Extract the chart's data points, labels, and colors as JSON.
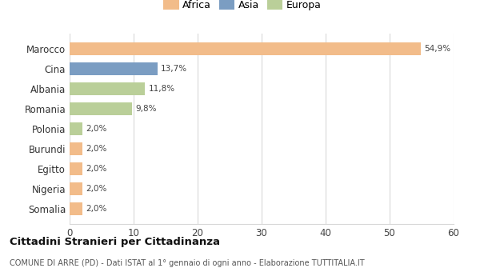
{
  "categories": [
    "Marocco",
    "Cina",
    "Albania",
    "Romania",
    "Polonia",
    "Burundi",
    "Egitto",
    "Nigeria",
    "Somalia"
  ],
  "values": [
    54.9,
    13.7,
    11.8,
    9.8,
    2.0,
    2.0,
    2.0,
    2.0,
    2.0
  ],
  "labels": [
    "54,9%",
    "13,7%",
    "11,8%",
    "9,8%",
    "2,0%",
    "2,0%",
    "2,0%",
    "2,0%",
    "2,0%"
  ],
  "colors": [
    "#F2BC8A",
    "#7B9DC2",
    "#BACF99",
    "#BACF99",
    "#BACF99",
    "#F2BC8A",
    "#F2BC8A",
    "#F2BC8A",
    "#F2BC8A"
  ],
  "legend_labels": [
    "Africa",
    "Asia",
    "Europa"
  ],
  "legend_colors": [
    "#F2BC8A",
    "#7B9DC2",
    "#BACF99"
  ],
  "xlim": [
    0,
    60
  ],
  "xticks": [
    0,
    10,
    20,
    30,
    40,
    50,
    60
  ],
  "title_bold": "Cittadini Stranieri per Cittadinanza",
  "subtitle": "COMUNE DI ARRE (PD) - Dati ISTAT al 1° gennaio di ogni anno - Elaborazione TUTTITALIA.IT",
  "bg_color": "#ffffff",
  "grid_color": "#d8d8d8"
}
